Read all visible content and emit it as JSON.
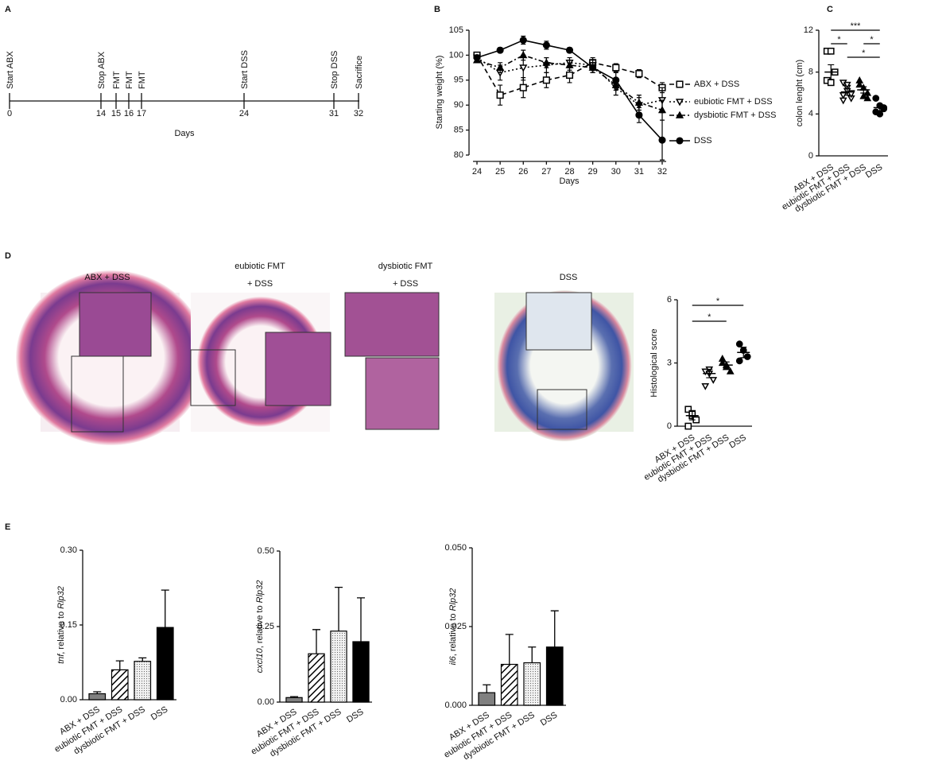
{
  "panel_labels": [
    "A",
    "B",
    "C",
    "D",
    "E"
  ],
  "timeline": {
    "labels": [
      "Start ABX",
      "Stop ABX",
      "FMT",
      "FMT",
      "FMT",
      "Start DSS",
      "Stop DSS",
      "Sacrifice"
    ],
    "days": [
      0,
      14,
      15,
      16,
      17,
      24,
      31,
      32
    ],
    "x_label": "Days"
  },
  "histology": {
    "titles": [
      [
        "ABX + DSS"
      ],
      [
        "eubiotic FMT",
        "+ DSS"
      ],
      [
        "dysbiotic FMT",
        "+ DSS"
      ],
      [
        "DSS"
      ]
    ]
  },
  "chart_data": [
    {
      "type": "line",
      "x_label": "Days",
      "y_label": "Starting weight (%)",
      "x": [
        24,
        25,
        26,
        27,
        28,
        29,
        30,
        31,
        32
      ],
      "xlim": [
        24,
        32
      ],
      "xticks": [
        24,
        25,
        26,
        27,
        28,
        29,
        30,
        31,
        32
      ],
      "ylim": [
        80,
        105
      ],
      "yticks": [
        80,
        85,
        90,
        95,
        100,
        105
      ],
      "series": [
        {
          "name": "ABX + DSS",
          "color": "#000000",
          "marker": "square-open",
          "dash": "6,4",
          "values": [
            100,
            92,
            93.5,
            95,
            96,
            98.5,
            97.5,
            96.3,
            93.5
          ],
          "errors": [
            0.5,
            2,
            2,
            1.5,
            1.5,
            1,
            0.8,
            0.8,
            1
          ]
        },
        {
          "name": "eubiotic FMT + DSS",
          "color": "#000000",
          "marker": "triangle-down-open",
          "dash": "2,3",
          "values": [
            99.5,
            96.5,
            97.5,
            98,
            98.5,
            98,
            93.5,
            90,
            91
          ],
          "errors": [
            0.5,
            1.5,
            2.5,
            1.5,
            1,
            1,
            1.5,
            1.5,
            2.5
          ]
        },
        {
          "name": "dysbiotic FMT + DSS",
          "color": "#000000",
          "marker": "triangle-up",
          "dash": "6,3,2,3",
          "values": [
            99,
            97.5,
            100,
            98.5,
            98,
            97.5,
            94,
            90.5,
            89
          ],
          "errors": [
            0.5,
            1,
            1,
            1,
            1,
            1,
            1,
            1.5,
            2
          ]
        },
        {
          "name": "DSS",
          "color": "#000000",
          "marker": "circle",
          "dash": "none",
          "values": [
            99.5,
            101,
            103,
            102,
            101,
            97.5,
            95,
            88,
            83
          ],
          "errors": [
            0.5,
            0.5,
            0.8,
            0.8,
            0.5,
            1,
            1.5,
            1.5,
            4
          ]
        }
      ]
    },
    {
      "type": "strip",
      "y_label": "colon lenght (cm)",
      "categories": [
        "ABX + DSS",
        "eubiotic FMT + DSS",
        "dysbiotic FMT + DSS",
        "DSS"
      ],
      "markers": [
        "square-open",
        "triangle-down-open",
        "triangle-up",
        "circle"
      ],
      "ylim": [
        0,
        12
      ],
      "yticks": [
        0,
        4,
        8,
        12
      ],
      "points": [
        [
          10,
          10,
          8,
          7.2,
          7
        ],
        [
          7,
          6.5,
          6,
          5.8,
          6.2,
          5.5,
          5.3,
          6.8,
          5.9
        ],
        [
          7.2,
          6.5,
          6,
          6.8,
          5.7,
          5.5
        ],
        [
          5.5,
          4.8,
          4.5,
          4.2,
          4,
          4.6
        ]
      ],
      "means": [
        8,
        6.1,
        6.3,
        4.6
      ],
      "sems": [
        0.7,
        0.3,
        0.3,
        0.3
      ],
      "significance": [
        {
          "groups": [
            "ABX + DSS",
            "DSS"
          ],
          "label": "***"
        },
        {
          "groups": [
            "ABX + DSS",
            "eubiotic FMT + DSS"
          ],
          "label": "*"
        },
        {
          "groups": [
            "dysbiotic FMT + DSS",
            "DSS"
          ],
          "label": "*"
        },
        {
          "groups": [
            "eubiotic FMT + DSS",
            "DSS"
          ],
          "label": "*"
        }
      ]
    },
    {
      "type": "strip",
      "y_label": "Histological score",
      "categories": [
        "ABX + DSS",
        "eubiotic FMT + DSS",
        "dysbiotic FMT + DSS",
        "DSS"
      ],
      "markers": [
        "square-open",
        "triangle-down-open",
        "triangle-up",
        "circle"
      ],
      "ylim": [
        0,
        6
      ],
      "yticks": [
        0,
        3,
        6
      ],
      "points": [
        [
          0.8,
          0.5,
          0.3,
          0,
          0.6
        ],
        [
          2.6,
          2.5,
          2.2,
          1.9,
          2.7
        ],
        [
          3,
          2.8,
          2.6,
          3.2,
          2.9
        ],
        [
          3.9,
          3.6,
          3.3,
          3.1
        ]
      ],
      "means": [
        0.5,
        2.5,
        2.9,
        3.5
      ],
      "sems": [
        0.2,
        0.2,
        0.15,
        0.25
      ],
      "significance": [
        {
          "groups": [
            "ABX + DSS",
            "DSS"
          ],
          "label": "*"
        },
        {
          "groups": [
            "ABX + DSS",
            "dysbiotic FMT + DSS"
          ],
          "label": "*"
        }
      ]
    },
    {
      "type": "bar",
      "y_label": [
        {
          "text": "tnf",
          "italic": true
        },
        {
          "text": ", relative to "
        },
        {
          "text": "Rlp32",
          "italic": true
        }
      ],
      "categories": [
        "ABX + DSS",
        "eubiotic FMT + DSS",
        "dysbiotic FMT + DSS",
        "DSS"
      ],
      "fills": [
        "#808080",
        "hatch",
        "dots",
        "#000000"
      ],
      "values": [
        0.012,
        0.06,
        0.077,
        0.145
      ],
      "errors": [
        0.004,
        0.018,
        0.007,
        0.075
      ],
      "ylim": [
        0,
        0.3
      ],
      "yticks": [
        {
          "value": 0,
          "label": "0.00"
        },
        {
          "value": 0.15,
          "label": "0.15"
        },
        {
          "value": 0.3,
          "label": "0.30"
        }
      ]
    },
    {
      "type": "bar",
      "y_label": [
        {
          "text": "cxcl10",
          "italic": true
        },
        {
          "text": ", relative to "
        },
        {
          "text": "Rlp32",
          "italic": true
        }
      ],
      "categories": [
        "ABX + DSS",
        "eubiotic FMT + DSS",
        "dysbiotic FMT + DSS",
        "DSS"
      ],
      "fills": [
        "#808080",
        "hatch",
        "dots",
        "#000000"
      ],
      "values": [
        0.015,
        0.16,
        0.235,
        0.2
      ],
      "errors": [
        0.003,
        0.08,
        0.145,
        0.145
      ],
      "ylim": [
        0,
        0.5
      ],
      "yticks": [
        {
          "value": 0,
          "label": "0.00"
        },
        0.25,
        {
          "value": 0.5,
          "label": "0.50"
        }
      ]
    },
    {
      "type": "bar",
      "y_label": [
        {
          "text": "il6",
          "italic": true
        },
        {
          "text": ", relative to "
        },
        {
          "text": "Rlp32",
          "italic": true
        }
      ],
      "categories": [
        "ABX + DSS",
        "eubiotic FMT + DSS",
        "dysbiotic FMT + DSS",
        "DSS"
      ],
      "fills": [
        "#808080",
        "hatch",
        "dots",
        "#000000"
      ],
      "values": [
        0.004,
        0.013,
        0.0135,
        0.0185
      ],
      "errors": [
        0.0025,
        0.0095,
        0.005,
        0.0115
      ],
      "ylim": [
        0,
        0.05
      ],
      "yticks": [
        {
          "value": 0,
          "label": "0.000"
        },
        0.025,
        {
          "value": 0.05,
          "label": "0.050"
        }
      ]
    }
  ]
}
